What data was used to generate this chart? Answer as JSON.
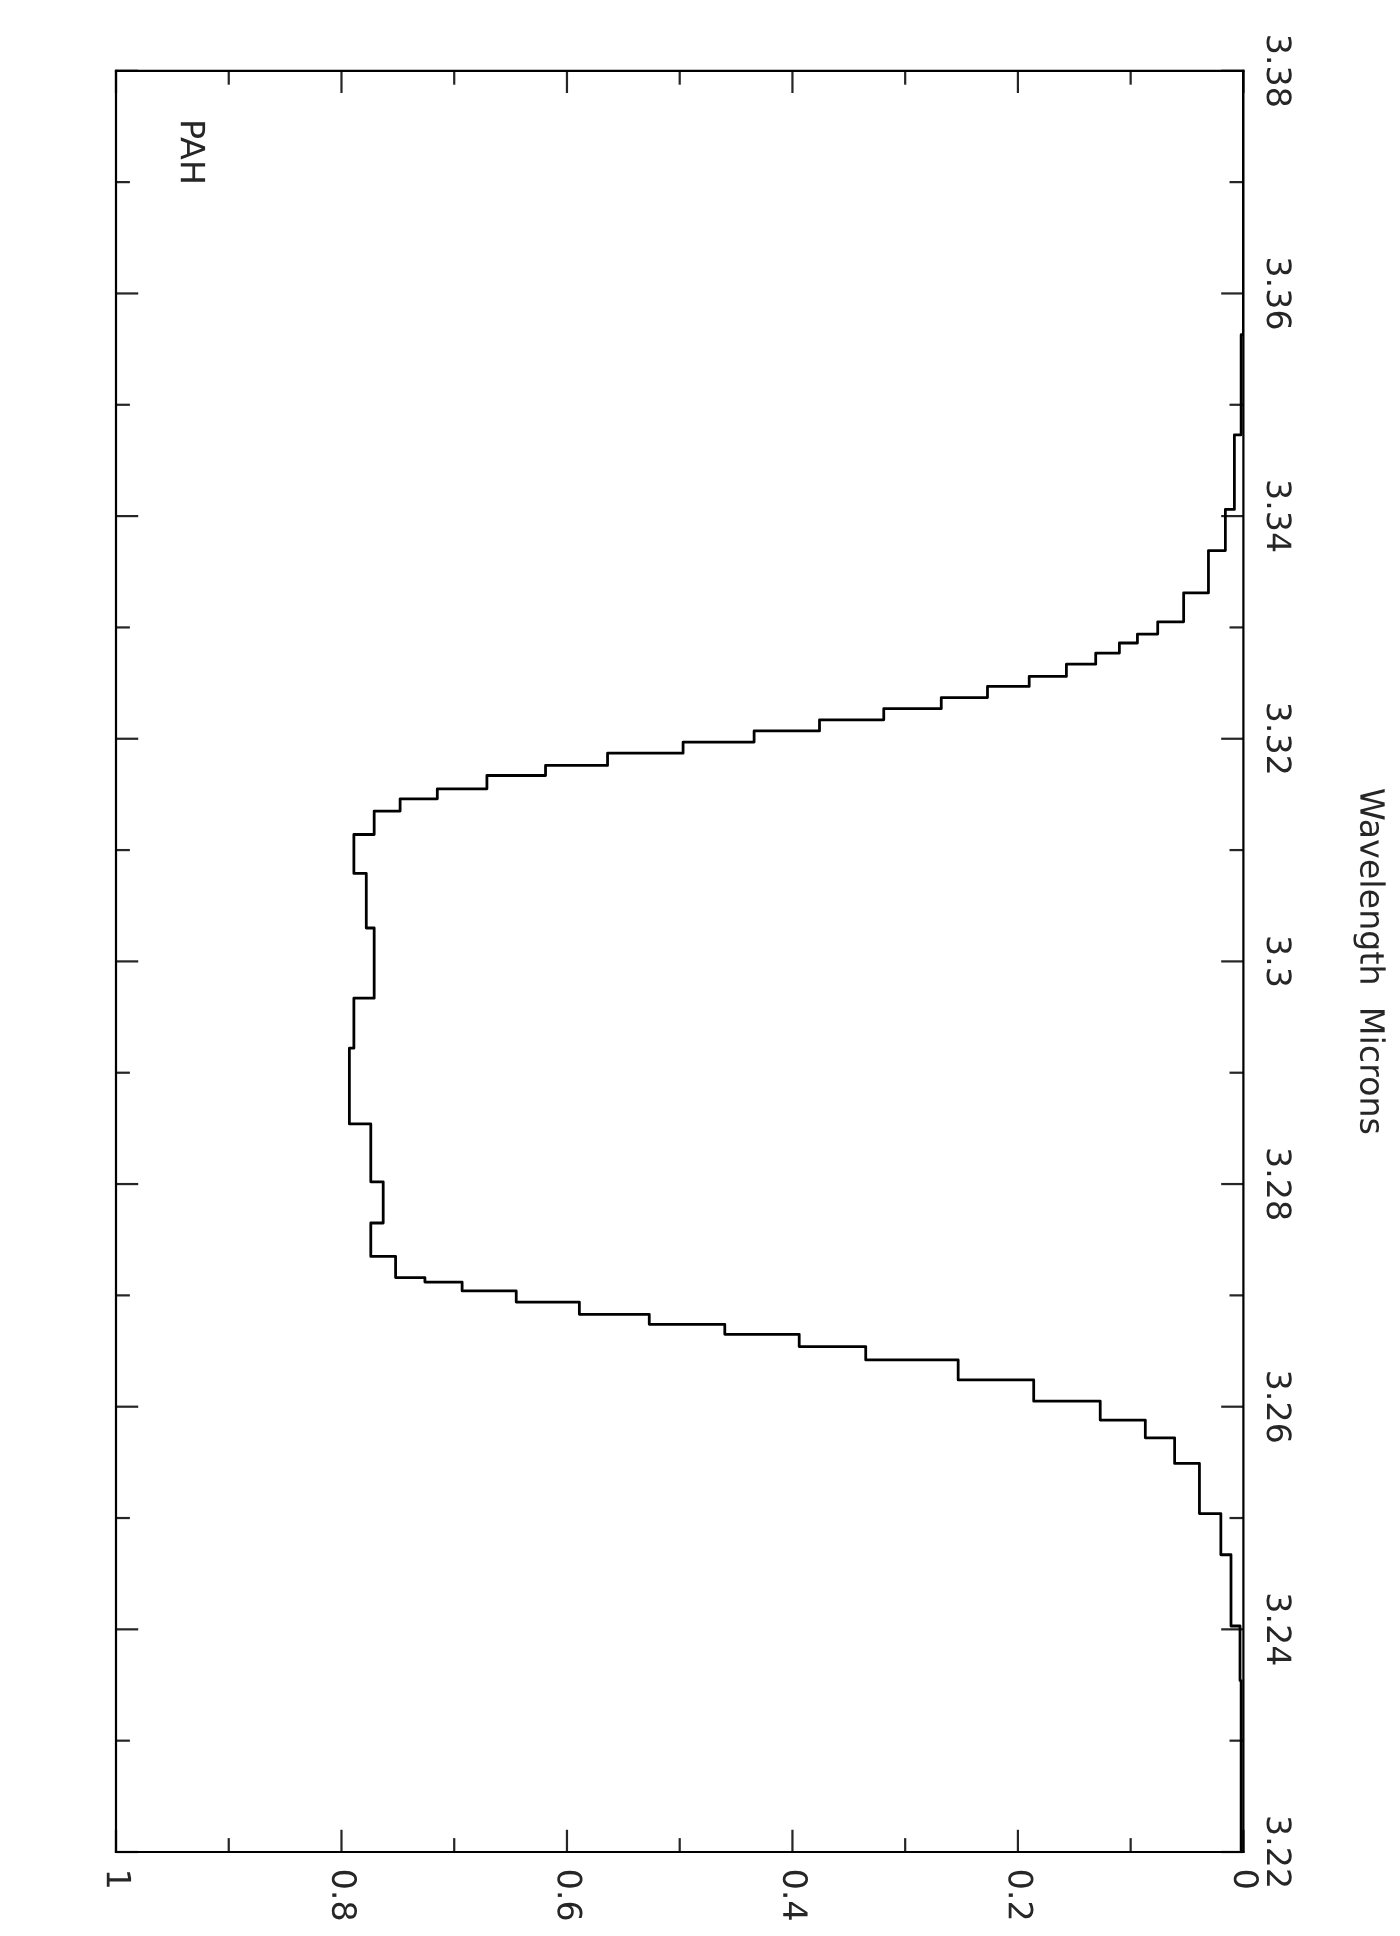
{
  "chart_data": {
    "type": "step",
    "title": "PAH",
    "ylabel": "Wavelength  Microns",
    "series": [
      {
        "color": "#000000",
        "x": [
          0,
          0.002,
          0.003,
          0.011,
          0.02,
          0.039,
          0.061,
          0.087,
          0.127,
          0.186,
          0.253,
          0.335,
          0.394,
          0.46,
          0.527,
          0.589,
          0.645,
          0.693,
          0.726,
          0.752,
          0.774,
          0.763,
          0.774,
          0.793,
          0.789,
          0.771,
          0.778,
          0.789,
          0.771,
          0.748,
          0.715,
          0.671,
          0.619,
          0.564,
          0.497,
          0.434,
          0.376,
          0.319,
          0.268,
          0.227,
          0.19,
          0.157,
          0.131,
          0.11,
          0.094,
          0.076,
          0.053,
          0.031,
          0.016,
          0.008,
          0.002,
          0,
          0
        ],
        "values": [
          3.22,
          3.2354,
          3.2403,
          3.2467,
          3.2504,
          3.2549,
          3.2572,
          3.2588,
          3.2605,
          3.2624,
          3.2642,
          3.2654,
          3.2665,
          3.2674,
          3.2683,
          3.2694,
          3.2704,
          3.2712,
          3.2716,
          3.2735,
          3.2765,
          3.2802,
          3.2854,
          3.2922,
          3.2967,
          3.303,
          3.3079,
          3.3114,
          3.3135,
          3.3146,
          3.3155,
          3.3167,
          3.3176,
          3.3187,
          3.3197,
          3.3207,
          3.3217,
          3.3227,
          3.3237,
          3.3247,
          3.3256,
          3.3267,
          3.3277,
          3.3286,
          3.3294,
          3.3305,
          3.3331,
          3.3369,
          3.3406,
          3.3473,
          3.3563,
          3.364,
          3.38
        ]
      }
    ],
    "ylim": [
      3.22,
      3.38
    ],
    "yticks": [
      3.22,
      {
        "value": 3.23,
        "label": null
      },
      3.24,
      {
        "value": 3.25,
        "label": null
      },
      3.26,
      {
        "value": 3.27,
        "label": null
      },
      3.28,
      {
        "value": 3.29,
        "label": null
      },
      3.3,
      {
        "value": 3.31,
        "label": null
      },
      3.32,
      {
        "value": 3.33,
        "label": null
      },
      3.34,
      {
        "value": 3.35,
        "label": null
      },
      3.36,
      {
        "value": 3.37,
        "label": null
      },
      3.38
    ],
    "xlim": [
      1,
      0
    ],
    "xticks": [
      1,
      {
        "value": 0.9,
        "label": null
      },
      0.8,
      {
        "value": 0.7,
        "label": null
      },
      0.6,
      {
        "value": 0.5,
        "label": null
      },
      0.4,
      {
        "value": 0.3,
        "label": null
      },
      0.2,
      {
        "value": 0.1,
        "label": null
      },
      0
    ]
  }
}
